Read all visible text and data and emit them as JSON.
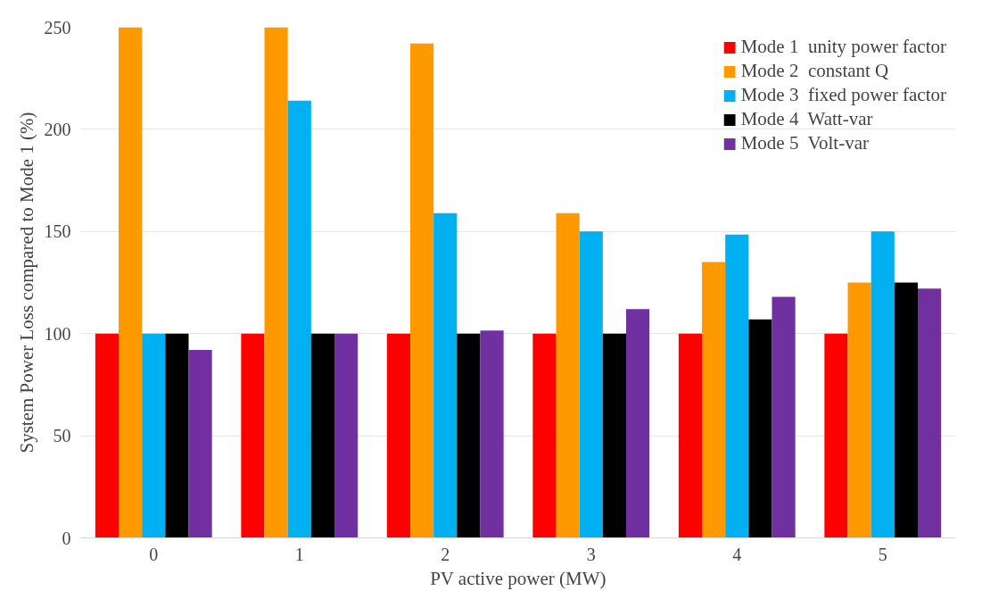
{
  "chart_data": {
    "type": "bar",
    "xlabel": "PV active power (MW)",
    "ylabel": "System Power Loss compared to Mode 1 (%)",
    "categories": [
      "0",
      "1",
      "2",
      "3",
      "4",
      "5"
    ],
    "series": [
      {
        "name": "Mode 1  unity power factor",
        "color": "#ff0000",
        "values": [
          100,
          100,
          100,
          100,
          100,
          100
        ]
      },
      {
        "name": "Mode 2  constant Q",
        "color": "#ff9900",
        "values": [
          250,
          250,
          242,
          159,
          135,
          125
        ]
      },
      {
        "name": "Mode 3  fixed power factor",
        "color": "#00b0f0",
        "values": [
          100,
          214,
          159,
          150,
          148.5,
          150
        ]
      },
      {
        "name": "Mode 4  Watt-var",
        "color": "#000000",
        "values": [
          100,
          100,
          100,
          100,
          107,
          125
        ]
      },
      {
        "name": "Mode 5  Volt-var",
        "color": "#7030a0",
        "values": [
          92,
          100,
          101.5,
          112,
          118,
          122
        ]
      }
    ],
    "ylim": [
      0,
      250
    ],
    "yticks": [
      0,
      50,
      100,
      150,
      200,
      250
    ],
    "grid": "y",
    "legend": "top right"
  }
}
